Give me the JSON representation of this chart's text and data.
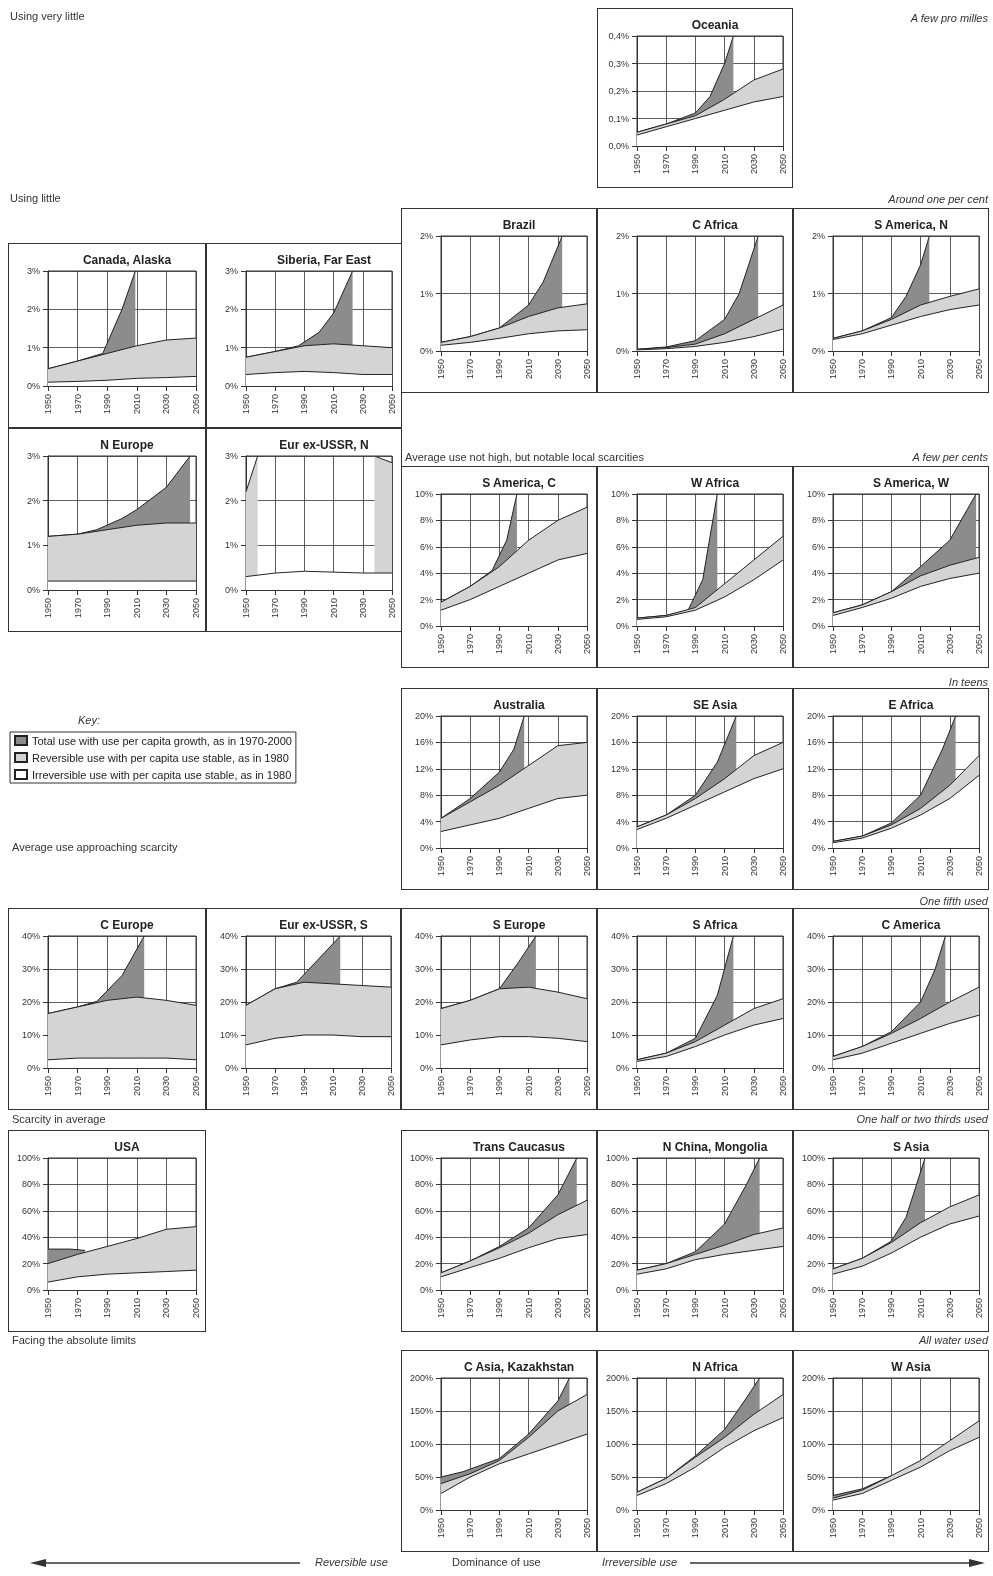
{
  "chart_data": [
    {
      "type": "area",
      "title": "Oceania",
      "x": [
        1950,
        1970,
        1990,
        2010,
        2030,
        2050
      ],
      "xlim": [
        1950,
        2050
      ],
      "xticks": [
        1950,
        1970,
        1990,
        2010,
        2030,
        2050
      ],
      "ylim": [
        0,
        0.4
      ],
      "yticks": [
        {
          "value": 0,
          "label": "0,0%"
        },
        {
          "value": 0.1,
          "label": "0,1%"
        },
        {
          "value": 0.2,
          "label": "0,2%"
        },
        {
          "value": 0.3,
          "label": "0,3%"
        },
        {
          "value": 0.4,
          "label": "0,4%"
        }
      ],
      "grid": true,
      "series": [
        {
          "color": "#8c8c8c",
          "x": [
            1950,
            1970,
            1990,
            2000,
            2010,
            2016
          ],
          "values": [
            0.05,
            0.08,
            0.12,
            0.18,
            0.3,
            0.4
          ]
        },
        {
          "color": "#d4d4d4",
          "values": [
            0.05,
            0.08,
            0.11,
            0.17,
            0.24,
            0.28
          ]
        },
        {
          "color": "#ffffff",
          "values": [
            0.04,
            0.07,
            0.1,
            0.13,
            0.16,
            0.18
          ]
        }
      ]
    },
    {
      "type": "area",
      "title": "Brazil",
      "x": [
        1950,
        1970,
        1990,
        2010,
        2030,
        2050
      ],
      "xlim": [
        1950,
        2050
      ],
      "xticks": [
        1950,
        1970,
        1990,
        2010,
        2030,
        2050
      ],
      "ylim": [
        0,
        2
      ],
      "yticks": [
        {
          "value": 0,
          "label": "0%"
        },
        {
          "value": 1,
          "label": "1%"
        },
        {
          "value": 2,
          "label": "2%"
        }
      ],
      "grid": true,
      "series": [
        {
          "color": "#8c8c8c",
          "x": [
            1950,
            1970,
            1990,
            2010,
            2020,
            2033
          ],
          "values": [
            0.15,
            0.25,
            0.4,
            0.8,
            1.2,
            2
          ]
        },
        {
          "color": "#d4d4d4",
          "values": [
            0.15,
            0.25,
            0.4,
            0.6,
            0.75,
            0.82
          ]
        },
        {
          "color": "#ffffff",
          "values": [
            0.1,
            0.15,
            0.22,
            0.3,
            0.35,
            0.37
          ]
        }
      ]
    },
    {
      "type": "area",
      "title": "C Africa",
      "x": [
        1950,
        1970,
        1990,
        2010,
        2030,
        2050
      ],
      "xlim": [
        1950,
        2050
      ],
      "xticks": [
        1950,
        1970,
        1990,
        2010,
        2030,
        2050
      ],
      "ylim": [
        0,
        2
      ],
      "yticks": [
        {
          "value": 0,
          "label": "0%"
        },
        {
          "value": 1,
          "label": "1%"
        },
        {
          "value": 2,
          "label": "2%"
        }
      ],
      "grid": true,
      "series": [
        {
          "color": "#8c8c8c",
          "x": [
            1950,
            1970,
            1990,
            2010,
            2020,
            2033
          ],
          "values": [
            0.03,
            0.07,
            0.18,
            0.55,
            1,
            2
          ]
        },
        {
          "color": "#d4d4d4",
          "values": [
            0.03,
            0.06,
            0.12,
            0.3,
            0.55,
            0.8
          ]
        },
        {
          "color": "#ffffff",
          "values": [
            0.02,
            0.04,
            0.08,
            0.15,
            0.25,
            0.38
          ]
        }
      ]
    },
    {
      "type": "area",
      "title": "S America, N",
      "x": [
        1950,
        1970,
        1990,
        2010,
        2030,
        2050
      ],
      "xlim": [
        1950,
        2050
      ],
      "xticks": [
        1950,
        1970,
        1990,
        2010,
        2030,
        2050
      ],
      "ylim": [
        0,
        2
      ],
      "yticks": [
        {
          "value": 0,
          "label": "0%"
        },
        {
          "value": 1,
          "label": "1%"
        },
        {
          "value": 2,
          "label": "2%"
        }
      ],
      "grid": true,
      "series": [
        {
          "color": "#8c8c8c",
          "x": [
            1950,
            1970,
            1990,
            2000,
            2010,
            2016
          ],
          "values": [
            0.22,
            0.35,
            0.58,
            0.95,
            1.5,
            2
          ]
        },
        {
          "color": "#d4d4d4",
          "values": [
            0.22,
            0.35,
            0.55,
            0.8,
            0.95,
            1.08
          ]
        },
        {
          "color": "#ffffff",
          "values": [
            0.2,
            0.3,
            0.45,
            0.6,
            0.72,
            0.8
          ]
        }
      ]
    },
    {
      "type": "area",
      "title": "Canada, Alaska",
      "x": [
        1950,
        1970,
        1990,
        2010,
        2030,
        2050
      ],
      "xlim": [
        1950,
        2050
      ],
      "xticks": [
        1950,
        1970,
        1990,
        2010,
        2030,
        2050
      ],
      "ylim": [
        0,
        3
      ],
      "yticks": [
        {
          "value": 0,
          "label": "0%"
        },
        {
          "value": 1,
          "label": "1%"
        },
        {
          "value": 2,
          "label": "2%"
        },
        {
          "value": 3,
          "label": "3%"
        }
      ],
      "grid": true,
      "series": [
        {
          "color": "#8c8c8c",
          "x": [
            1950,
            1970,
            1987,
            2000,
            2009
          ],
          "values": [
            0.45,
            0.65,
            0.85,
            2,
            3
          ]
        },
        {
          "color": "#d4d4d4",
          "values": [
            0.45,
            0.65,
            0.85,
            1.05,
            1.2,
            1.25
          ]
        },
        {
          "color": "#ffffff",
          "values": [
            0.1,
            0.12,
            0.15,
            0.2,
            0.22,
            0.25
          ]
        }
      ]
    },
    {
      "type": "area",
      "title": "Siberia, Far East",
      "x": [
        1950,
        1970,
        1990,
        2010,
        2030,
        2050
      ],
      "xlim": [
        1950,
        2050
      ],
      "xticks": [
        1950,
        1970,
        1990,
        2010,
        2030,
        2050
      ],
      "ylim": [
        0,
        3
      ],
      "yticks": [
        {
          "value": 0,
          "label": "0%"
        },
        {
          "value": 1,
          "label": "1%"
        },
        {
          "value": 2,
          "label": "2%"
        },
        {
          "value": 3,
          "label": "3%"
        }
      ],
      "grid": true,
      "series": [
        {
          "color": "#8c8c8c",
          "x": [
            1950,
            1970,
            1986,
            2000,
            2010,
            2023
          ],
          "values": [
            0.75,
            0.9,
            1.05,
            1.4,
            1.9,
            3
          ]
        },
        {
          "color": "#d4d4d4",
          "values": [
            0.75,
            0.9,
            1.05,
            1.1,
            1.05,
            1
          ]
        },
        {
          "color": "#ffffff",
          "values": [
            0.3,
            0.35,
            0.38,
            0.35,
            0.3,
            0.3
          ]
        }
      ]
    },
    {
      "type": "area",
      "title": "N Europe",
      "x": [
        1950,
        1970,
        1990,
        2010,
        2030,
        2050
      ],
      "xlim": [
        1950,
        2050
      ],
      "xticks": [
        1950,
        1970,
        1990,
        2010,
        2030,
        2050
      ],
      "ylim": [
        0,
        3
      ],
      "yticks": [
        {
          "value": 0,
          "label": "0%"
        },
        {
          "value": 1,
          "label": "1%"
        },
        {
          "value": 2,
          "label": "2%"
        },
        {
          "value": 3,
          "label": "3%"
        }
      ],
      "grid": true,
      "series": [
        {
          "color": "#8c8c8c",
          "x": [
            1950,
            1970,
            1983,
            2000,
            2010,
            2030,
            2046
          ],
          "values": [
            1.2,
            1.25,
            1.35,
            1.6,
            1.8,
            2.3,
            3
          ]
        },
        {
          "color": "#d4d4d4",
          "values": [
            1.2,
            1.25,
            1.35,
            1.45,
            1.5,
            1.5
          ]
        },
        {
          "color": "#ffffff",
          "values": [
            0.2,
            0.2,
            0.2,
            0.2,
            0.2,
            0.2
          ]
        }
      ]
    },
    {
      "type": "area",
      "title": "Eur ex-USSR, N",
      "x": [
        1950,
        1970,
        1990,
        2010,
        2030,
        2050
      ],
      "xlim": [
        1950,
        2050
      ],
      "xticks": [
        1950,
        1970,
        1990,
        2010,
        2030,
        2050
      ],
      "ylim": [
        0,
        3
      ],
      "yticks": [
        {
          "value": 0,
          "label": "0%"
        },
        {
          "value": 1,
          "label": "1%"
        },
        {
          "value": 2,
          "label": "2%"
        },
        {
          "value": 3,
          "label": "3%"
        }
      ],
      "grid": true,
      "series": [
        {
          "color": "#d4d4d4",
          "x": [
            1950,
            1958,
            2000,
            2038,
            2050
          ],
          "values": [
            2.2,
            3,
            null,
            3,
            2.85
          ]
        },
        {
          "color": "#ffffff",
          "values": [
            0.3,
            0.38,
            0.42,
            0.4,
            0.38,
            0.38
          ]
        }
      ]
    },
    {
      "type": "area",
      "title": "S America, C",
      "x": [
        1950,
        1970,
        1990,
        2010,
        2030,
        2050
      ],
      "xlim": [
        1950,
        2050
      ],
      "xticks": [
        1950,
        1970,
        1990,
        2010,
        2030,
        2050
      ],
      "ylim": [
        0,
        10
      ],
      "yticks": [
        {
          "value": 0,
          "label": "0%"
        },
        {
          "value": 2,
          "label": "2%"
        },
        {
          "value": 4,
          "label": "4%"
        },
        {
          "value": 6,
          "label": "6%"
        },
        {
          "value": 8,
          "label": "8%"
        },
        {
          "value": 10,
          "label": "10%"
        }
      ],
      "grid": true,
      "series": [
        {
          "color": "#8c8c8c",
          "x": [
            1950,
            1970,
            1985,
            1995,
            2002
          ],
          "values": [
            1.8,
            3,
            4.2,
            6.5,
            10
          ]
        },
        {
          "color": "#d4d4d4",
          "values": [
            1.8,
            3,
            4.5,
            6.5,
            8,
            9
          ]
        },
        {
          "color": "#ffffff",
          "values": [
            1.2,
            2,
            3,
            4,
            5,
            5.5
          ]
        }
      ]
    },
    {
      "type": "area",
      "title": "W Africa",
      "x": [
        1950,
        1970,
        1990,
        2010,
        2030,
        2050
      ],
      "xlim": [
        1950,
        2050
      ],
      "xticks": [
        1950,
        1970,
        1990,
        2010,
        2030,
        2050
      ],
      "ylim": [
        0,
        10
      ],
      "yticks": [
        {
          "value": 0,
          "label": "0%"
        },
        {
          "value": 2,
          "label": "2%"
        },
        {
          "value": 4,
          "label": "4%"
        },
        {
          "value": 6,
          "label": "6%"
        },
        {
          "value": 8,
          "label": "8%"
        },
        {
          "value": 10,
          "label": "10%"
        }
      ],
      "grid": true,
      "series": [
        {
          "color": "#8c8c8c",
          "x": [
            1950,
            1970,
            1985,
            1995,
            2005
          ],
          "values": [
            0.6,
            0.8,
            1.2,
            3.5,
            10
          ]
        },
        {
          "color": "#d4d4d4",
          "values": [
            0.6,
            0.8,
            1.4,
            3.2,
            5,
            6.8
          ]
        },
        {
          "color": "#ffffff",
          "values": [
            0.5,
            0.7,
            1.2,
            2.2,
            3.5,
            5
          ]
        }
      ]
    },
    {
      "type": "area",
      "title": "S America, W",
      "x": [
        1950,
        1970,
        1990,
        2010,
        2030,
        2050
      ],
      "xlim": [
        1950,
        2050
      ],
      "xticks": [
        1950,
        1970,
        1990,
        2010,
        2030,
        2050
      ],
      "ylim": [
        0,
        10
      ],
      "yticks": [
        {
          "value": 0,
          "label": "0%"
        },
        {
          "value": 2,
          "label": "2%"
        },
        {
          "value": 4,
          "label": "4%"
        },
        {
          "value": 6,
          "label": "6%"
        },
        {
          "value": 8,
          "label": "8%"
        },
        {
          "value": 10,
          "label": "10%"
        }
      ],
      "grid": true,
      "series": [
        {
          "color": "#8c8c8c",
          "x": [
            1950,
            1970,
            1990,
            2010,
            2030,
            2048
          ],
          "values": [
            1,
            1.6,
            2.6,
            4.5,
            6.5,
            10
          ]
        },
        {
          "color": "#d4d4d4",
          "values": [
            1,
            1.6,
            2.6,
            3.8,
            4.6,
            5.2
          ]
        },
        {
          "color": "#ffffff",
          "values": [
            0.8,
            1.4,
            2.1,
            3,
            3.6,
            4
          ]
        }
      ]
    },
    {
      "type": "area",
      "title": "Australia",
      "legend": "left",
      "legend_title": "Key:",
      "x": [
        1950,
        1970,
        1990,
        2010,
        2030,
        2050
      ],
      "xlim": [
        1950,
        2050
      ],
      "xticks": [
        1950,
        1970,
        1990,
        2010,
        2030,
        2050
      ],
      "ylim": [
        0,
        20
      ],
      "yticks": [
        {
          "value": 0,
          "label": "0%"
        },
        {
          "value": 4,
          "label": "4%"
        },
        {
          "value": 8,
          "label": "8%"
        },
        {
          "value": 12,
          "label": "12%"
        },
        {
          "value": 16,
          "label": "16%"
        },
        {
          "value": 20,
          "label": "20%"
        }
      ],
      "grid": true,
      "series": [
        {
          "name": "Total use with use per capita growth, as in 1970-2000",
          "color": "#8c8c8c",
          "x": [
            1950,
            1970,
            1990,
            2000,
            2007
          ],
          "values": [
            4.5,
            7.5,
            11.5,
            15,
            20
          ]
        },
        {
          "name": "Reversible use with per capita use stable, as in 1980",
          "color": "#d4d4d4",
          "values": [
            4.5,
            7,
            9.5,
            12.5,
            15.5,
            16
          ]
        },
        {
          "name": "Irreversible use with per capita use stable, as in 1980",
          "color": "#ffffff",
          "values": [
            2.5,
            3.5,
            4.5,
            6,
            7.5,
            8
          ]
        }
      ]
    },
    {
      "type": "area",
      "title": "SE Asia",
      "x": [
        1950,
        1970,
        1990,
        2010,
        2030,
        2050
      ],
      "xlim": [
        1950,
        2050
      ],
      "xticks": [
        1950,
        1970,
        1990,
        2010,
        2030,
        2050
      ],
      "ylim": [
        0,
        20
      ],
      "yticks": [
        {
          "value": 0,
          "label": "0%"
        },
        {
          "value": 4,
          "label": "4%"
        },
        {
          "value": 8,
          "label": "8%"
        },
        {
          "value": 12,
          "label": "12%"
        },
        {
          "value": 16,
          "label": "16%"
        },
        {
          "value": 20,
          "label": "20%"
        }
      ],
      "grid": true,
      "series": [
        {
          "color": "#8c8c8c",
          "x": [
            1950,
            1970,
            1990,
            2005,
            2018
          ],
          "values": [
            3.2,
            5,
            8,
            13,
            20
          ]
        },
        {
          "color": "#d4d4d4",
          "values": [
            3.2,
            5,
            7.5,
            10.5,
            14,
            16
          ]
        },
        {
          "color": "#ffffff",
          "values": [
            2.8,
            4.5,
            6.5,
            8.5,
            10.5,
            12
          ]
        }
      ]
    },
    {
      "type": "area",
      "title": "E Africa",
      "x": [
        1950,
        1970,
        1990,
        2010,
        2030,
        2050
      ],
      "xlim": [
        1950,
        2050
      ],
      "xticks": [
        1950,
        1970,
        1990,
        2010,
        2030,
        2050
      ],
      "ylim": [
        0,
        20
      ],
      "yticks": [
        {
          "value": 0,
          "label": "0%"
        },
        {
          "value": 4,
          "label": "4%"
        },
        {
          "value": 8,
          "label": "8%"
        },
        {
          "value": 12,
          "label": "12%"
        },
        {
          "value": 16,
          "label": "16%"
        },
        {
          "value": 20,
          "label": "20%"
        }
      ],
      "grid": true,
      "series": [
        {
          "color": "#8c8c8c",
          "x": [
            1950,
            1970,
            1990,
            2010,
            2025,
            2034
          ],
          "values": [
            1,
            1.8,
            3.8,
            8,
            15,
            20
          ]
        },
        {
          "color": "#d4d4d4",
          "values": [
            1,
            1.8,
            3.5,
            6,
            9.5,
            14
          ]
        },
        {
          "color": "#ffffff",
          "values": [
            0.8,
            1.5,
            3,
            5,
            7.5,
            11
          ]
        }
      ]
    },
    {
      "type": "area",
      "title": "C Europe",
      "x": [
        1950,
        1970,
        1990,
        2010,
        2030,
        2050
      ],
      "xlim": [
        1950,
        2050
      ],
      "xticks": [
        1950,
        1970,
        1990,
        2010,
        2030,
        2050
      ],
      "ylim": [
        0,
        40
      ],
      "yticks": [
        {
          "value": 0,
          "label": "0%"
        },
        {
          "value": 10,
          "label": "10%"
        },
        {
          "value": 20,
          "label": "20%"
        },
        {
          "value": 30,
          "label": "30%"
        },
        {
          "value": 40,
          "label": "40%"
        }
      ],
      "grid": true,
      "series": [
        {
          "color": "#8c8c8c",
          "x": [
            1950,
            1970,
            1983,
            2000,
            2015
          ],
          "values": [
            16.5,
            18.5,
            20.2,
            28,
            40
          ]
        },
        {
          "color": "#d4d4d4",
          "values": [
            16.5,
            18.5,
            20.5,
            21.5,
            20.5,
            19
          ]
        },
        {
          "color": "#ffffff",
          "values": [
            2.5,
            3,
            3,
            3,
            3,
            2.5
          ]
        }
      ]
    },
    {
      "type": "area",
      "title": "Eur ex-USSR, S",
      "x": [
        1950,
        1970,
        1990,
        2010,
        2030,
        2050
      ],
      "xlim": [
        1950,
        2050
      ],
      "xticks": [
        1950,
        1970,
        1990,
        2010,
        2030,
        2050
      ],
      "ylim": [
        0,
        40
      ],
      "yticks": [
        {
          "value": 0,
          "label": "0%"
        },
        {
          "value": 10,
          "label": "10%"
        },
        {
          "value": 20,
          "label": "20%"
        },
        {
          "value": 30,
          "label": "30%"
        },
        {
          "value": 40,
          "label": "40%"
        }
      ],
      "grid": true,
      "series": [
        {
          "color": "#8c8c8c",
          "x": [
            1950,
            1970,
            1985,
            2000,
            2015
          ],
          "values": [
            19,
            24,
            26,
            33,
            40
          ]
        },
        {
          "color": "#d4d4d4",
          "values": [
            19,
            24,
            26,
            25.5,
            25,
            24.5
          ]
        },
        {
          "color": "#ffffff",
          "values": [
            7,
            9,
            10,
            10,
            9.5,
            9.5
          ]
        }
      ]
    },
    {
      "type": "area",
      "title": "S Europe",
      "x": [
        1950,
        1970,
        1990,
        2010,
        2030,
        2050
      ],
      "xlim": [
        1950,
        2050
      ],
      "xticks": [
        1950,
        1970,
        1990,
        2010,
        2030,
        2050
      ],
      "ylim": [
        0,
        40
      ],
      "yticks": [
        {
          "value": 0,
          "label": "0%"
        },
        {
          "value": 10,
          "label": "10%"
        },
        {
          "value": 20,
          "label": "20%"
        },
        {
          "value": 30,
          "label": "30%"
        },
        {
          "value": 40,
          "label": "40%"
        }
      ],
      "grid": true,
      "series": [
        {
          "color": "#8c8c8c",
          "x": [
            1950,
            1970,
            1990,
            2003,
            2015
          ],
          "values": [
            18,
            20.5,
            24,
            32,
            40
          ]
        },
        {
          "color": "#d4d4d4",
          "values": [
            18,
            20.5,
            24,
            24.5,
            23,
            21
          ]
        },
        {
          "color": "#ffffff",
          "values": [
            7,
            8.5,
            9.5,
            9.5,
            9,
            8
          ]
        }
      ]
    },
    {
      "type": "area",
      "title": "S Africa",
      "x": [
        1950,
        1970,
        1990,
        2010,
        2030,
        2050
      ],
      "xlim": [
        1950,
        2050
      ],
      "xticks": [
        1950,
        1970,
        1990,
        2010,
        2030,
        2050
      ],
      "ylim": [
        0,
        40
      ],
      "yticks": [
        {
          "value": 0,
          "label": "0%"
        },
        {
          "value": 10,
          "label": "10%"
        },
        {
          "value": 20,
          "label": "20%"
        },
        {
          "value": 30,
          "label": "30%"
        },
        {
          "value": 40,
          "label": "40%"
        }
      ],
      "grid": true,
      "series": [
        {
          "color": "#8c8c8c",
          "x": [
            1950,
            1970,
            1990,
            2005,
            2016
          ],
          "values": [
            2.5,
            4.5,
            9,
            22,
            40
          ]
        },
        {
          "color": "#d4d4d4",
          "values": [
            2.5,
            4.5,
            8,
            13,
            18,
            21
          ]
        },
        {
          "color": "#ffffff",
          "values": [
            2,
            3.5,
            6.5,
            10,
            13,
            15
          ]
        }
      ]
    },
    {
      "type": "area",
      "title": "C America",
      "x": [
        1950,
        1970,
        1990,
        2010,
        2030,
        2050
      ],
      "xlim": [
        1950,
        2050
      ],
      "xticks": [
        1950,
        1970,
        1990,
        2010,
        2030,
        2050
      ],
      "ylim": [
        0,
        40
      ],
      "yticks": [
        {
          "value": 0,
          "label": "0%"
        },
        {
          "value": 10,
          "label": "10%"
        },
        {
          "value": 20,
          "label": "20%"
        },
        {
          "value": 30,
          "label": "30%"
        },
        {
          "value": 40,
          "label": "40%"
        }
      ],
      "grid": true,
      "series": [
        {
          "color": "#8c8c8c",
          "x": [
            1950,
            1970,
            1990,
            2010,
            2020,
            2027
          ],
          "values": [
            3.5,
            6.5,
            11,
            20,
            30,
            40
          ]
        },
        {
          "color": "#d4d4d4",
          "values": [
            3.5,
            6.5,
            10.5,
            15,
            20,
            24.5
          ]
        },
        {
          "color": "#ffffff",
          "values": [
            2.5,
            4.5,
            7.5,
            10.5,
            13.5,
            16
          ]
        }
      ]
    },
    {
      "type": "area",
      "title": "USA",
      "x": [
        1950,
        1970,
        1990,
        2010,
        2030,
        2050
      ],
      "xlim": [
        1950,
        2050
      ],
      "xticks": [
        1950,
        1970,
        1990,
        2010,
        2030,
        2050
      ],
      "ylim": [
        0,
        100
      ],
      "yticks": [
        {
          "value": 0,
          "label": "0%"
        },
        {
          "value": 20,
          "label": "20%"
        },
        {
          "value": 40,
          "label": "40%"
        },
        {
          "value": 60,
          "label": "60%"
        },
        {
          "value": 80,
          "label": "80%"
        },
        {
          "value": 100,
          "label": "100%"
        }
      ],
      "grid": true,
      "series": [
        {
          "color": "#8c8c8c",
          "x": [
            1950,
            1965,
            1975
          ],
          "values": [
            31,
            31,
            30
          ]
        },
        {
          "color": "#d4d4d4",
          "values": [
            20,
            27,
            33,
            39,
            46,
            48
          ]
        },
        {
          "color": "#ffffff",
          "values": [
            6,
            10,
            12,
            13,
            14,
            15
          ]
        }
      ]
    },
    {
      "type": "area",
      "title": "Trans Caucasus",
      "x": [
        1950,
        1970,
        1990,
        2010,
        2030,
        2050
      ],
      "xlim": [
        1950,
        2050
      ],
      "xticks": [
        1950,
        1970,
        1990,
        2010,
        2030,
        2050
      ],
      "ylim": [
        0,
        100
      ],
      "yticks": [
        {
          "value": 0,
          "label": "0%"
        },
        {
          "value": 20,
          "label": "20%"
        },
        {
          "value": 40,
          "label": "40%"
        },
        {
          "value": 60,
          "label": "60%"
        },
        {
          "value": 80,
          "label": "80%"
        },
        {
          "value": 100,
          "label": "100%"
        }
      ],
      "grid": true,
      "series": [
        {
          "color": "#8c8c8c",
          "x": [
            1950,
            1970,
            1990,
            2010,
            2030,
            2043
          ],
          "values": [
            13,
            22,
            33,
            47,
            72,
            100
          ]
        },
        {
          "color": "#d4d4d4",
          "values": [
            13,
            22,
            32,
            43,
            57,
            68
          ]
        },
        {
          "color": "#ffffff",
          "values": [
            10,
            17,
            24,
            32,
            39,
            42
          ]
        }
      ]
    },
    {
      "type": "area",
      "title": "N China, Mongolia",
      "x": [
        1950,
        1970,
        1990,
        2010,
        2030,
        2050
      ],
      "xlim": [
        1950,
        2050
      ],
      "xticks": [
        1950,
        1970,
        1990,
        2010,
        2030,
        2050
      ],
      "ylim": [
        0,
        100
      ],
      "yticks": [
        {
          "value": 0,
          "label": "0%"
        },
        {
          "value": 20,
          "label": "20%"
        },
        {
          "value": 40,
          "label": "40%"
        },
        {
          "value": 60,
          "label": "60%"
        },
        {
          "value": 80,
          "label": "80%"
        },
        {
          "value": 100,
          "label": "100%"
        }
      ],
      "grid": true,
      "series": [
        {
          "color": "#8c8c8c",
          "x": [
            1950,
            1970,
            1990,
            2010,
            2025,
            2034
          ],
          "values": [
            15,
            20,
            29,
            50,
            80,
            100
          ]
        },
        {
          "color": "#d4d4d4",
          "values": [
            15,
            20,
            27,
            34,
            42,
            47
          ]
        },
        {
          "color": "#ffffff",
          "values": [
            12,
            16,
            23,
            27,
            30,
            33
          ]
        }
      ]
    },
    {
      "type": "area",
      "title": "S Asia",
      "x": [
        1950,
        1970,
        1990,
        2010,
        2030,
        2050
      ],
      "xlim": [
        1950,
        2050
      ],
      "xticks": [
        1950,
        1970,
        1990,
        2010,
        2030,
        2050
      ],
      "ylim": [
        0,
        100
      ],
      "yticks": [
        {
          "value": 0,
          "label": "0%"
        },
        {
          "value": 20,
          "label": "20%"
        },
        {
          "value": 40,
          "label": "40%"
        },
        {
          "value": 60,
          "label": "60%"
        },
        {
          "value": 80,
          "label": "80%"
        },
        {
          "value": 100,
          "label": "100%"
        }
      ],
      "grid": true,
      "series": [
        {
          "color": "#8c8c8c",
          "x": [
            1950,
            1970,
            1990,
            2000,
            2013
          ],
          "values": [
            16,
            24,
            37,
            55,
            100
          ]
        },
        {
          "color": "#d4d4d4",
          "values": [
            16,
            24,
            36,
            51,
            63,
            72
          ]
        },
        {
          "color": "#ffffff",
          "values": [
            12,
            18,
            28,
            40,
            50,
            56
          ]
        }
      ]
    },
    {
      "type": "area",
      "title": "C Asia, Kazakhstan",
      "x": [
        1950,
        1970,
        1990,
        2010,
        2030,
        2050
      ],
      "xlim": [
        1950,
        2050
      ],
      "xticks": [
        1950,
        1970,
        1990,
        2010,
        2030,
        2050
      ],
      "ylim": [
        0,
        200
      ],
      "yticks": [
        {
          "value": 0,
          "label": "0%"
        },
        {
          "value": 50,
          "label": "50%"
        },
        {
          "value": 100,
          "label": "100%"
        },
        {
          "value": 150,
          "label": "150%"
        },
        {
          "value": 200,
          "label": "200%"
        }
      ],
      "grid": true,
      "series": [
        {
          "color": "#8c8c8c",
          "x": [
            1950,
            1965,
            1990,
            2010,
            2030,
            2038
          ],
          "values": [
            50,
            58,
            78,
            115,
            165,
            200
          ]
        },
        {
          "color": "#d4d4d4",
          "values": [
            40,
            55,
            75,
            110,
            150,
            175
          ]
        },
        {
          "color": "#ffffff",
          "values": [
            25,
            50,
            70,
            85,
            100,
            115
          ]
        }
      ]
    },
    {
      "type": "area",
      "title": "N Africa",
      "x": [
        1950,
        1970,
        1990,
        2010,
        2030,
        2050
      ],
      "xlim": [
        1950,
        2050
      ],
      "xticks": [
        1950,
        1970,
        1990,
        2010,
        2030,
        2050
      ],
      "ylim": [
        0,
        200
      ],
      "yticks": [
        {
          "value": 0,
          "label": "0%"
        },
        {
          "value": 50,
          "label": "50%"
        },
        {
          "value": 100,
          "label": "100%"
        },
        {
          "value": 150,
          "label": "150%"
        },
        {
          "value": 200,
          "label": "200%"
        }
      ],
      "grid": true,
      "series": [
        {
          "color": "#8c8c8c",
          "x": [
            1950,
            1970,
            1990,
            2010,
            2025,
            2034
          ],
          "values": [
            27,
            48,
            82,
            122,
            170,
            200
          ]
        },
        {
          "color": "#d4d4d4",
          "values": [
            27,
            48,
            80,
            110,
            145,
            175
          ]
        },
        {
          "color": "#ffffff",
          "values": [
            22,
            40,
            65,
            95,
            120,
            140
          ]
        }
      ]
    },
    {
      "type": "area",
      "title": "W Asia",
      "x": [
        1950,
        1970,
        1990,
        2010,
        2030,
        2050
      ],
      "xlim": [
        1950,
        2050
      ],
      "xticks": [
        1950,
        1970,
        1990,
        2010,
        2030,
        2050
      ],
      "ylim": [
        0,
        200
      ],
      "yticks": [
        {
          "value": 0,
          "label": "0%"
        },
        {
          "value": 50,
          "label": "50%"
        },
        {
          "value": 100,
          "label": "100%"
        },
        {
          "value": 150,
          "label": "150%"
        },
        {
          "value": 200,
          "label": "200%"
        }
      ],
      "grid": true,
      "series": [
        {
          "color": "#8c8c8c",
          "x": [
            1950,
            1970,
            1990
          ],
          "values": [
            22,
            32,
            52
          ]
        },
        {
          "color": "#d4d4d4",
          "values": [
            18,
            30,
            52,
            75,
            105,
            135
          ]
        },
        {
          "color": "#ffffff",
          "values": [
            15,
            25,
            45,
            65,
            90,
            110
          ]
        }
      ]
    },
    {
      "type": "other",
      "annotations": [
        "Using very little",
        "A few pro milles",
        "Using little",
        "Around one per cent",
        "Average use not high, but notable local scarcities",
        "A few per cents",
        "In teens",
        "Average use approaching scarcity",
        "One fifth used",
        "Scarcity in average",
        "One half or two thirds used",
        "Facing the absolute limits",
        "All water used",
        "Reversible use",
        "Dominance of use",
        "Irreversible use"
      ]
    }
  ]
}
